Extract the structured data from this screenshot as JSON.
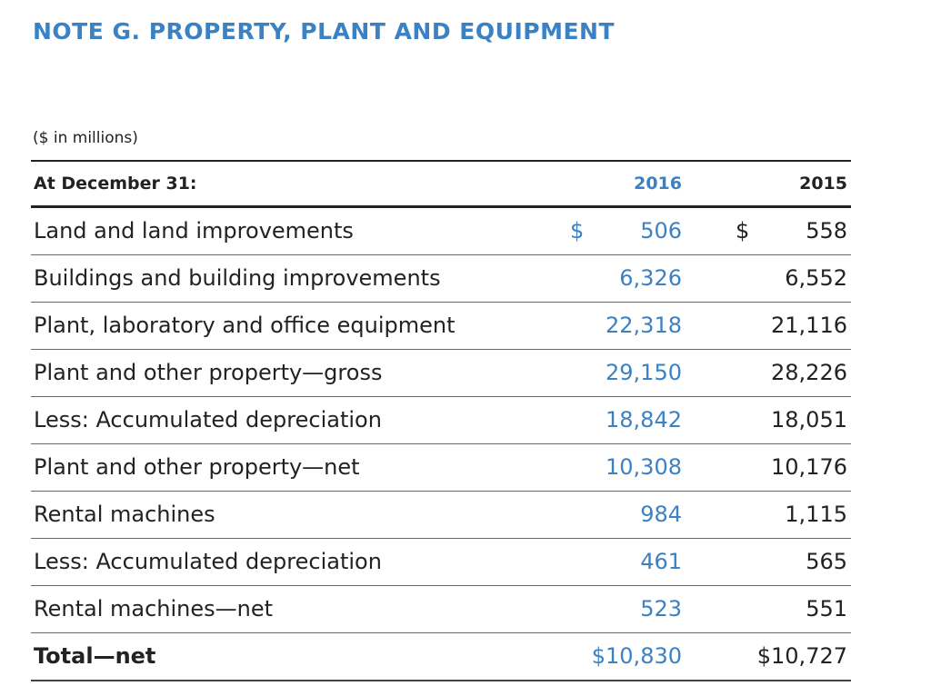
{
  "title": "NOTE G. PROPERTY, PLANT AND EQUIPMENT",
  "units": "($ in millions)",
  "header": {
    "label": "At December 31:",
    "col_2016": "2016",
    "col_2015": "2015"
  },
  "rows": [
    {
      "label": "Land and land improvements",
      "y2016": "506",
      "y2015": "558",
      "dollar": "$"
    },
    {
      "label": "Buildings and building improvements",
      "y2016": "6,326",
      "y2015": "6,552"
    },
    {
      "label": "Plant, laboratory and office equipment",
      "y2016": "22,318",
      "y2015": "21,116"
    },
    {
      "label": "Plant and other property—gross",
      "y2016": "29,150",
      "y2015": "28,226"
    },
    {
      "label": "Less: Accumulated depreciation",
      "y2016": "18,842",
      "y2015": "18,051"
    },
    {
      "label": "Plant and other property—net",
      "y2016": "10,308",
      "y2015": "10,176"
    },
    {
      "label": "Rental machines",
      "y2016": "984",
      "y2015": "1,115"
    },
    {
      "label": "Less: Accumulated depreciation",
      "y2016": "461",
      "y2015": "565"
    },
    {
      "label": "Rental machines—net",
      "y2016": "523",
      "y2015": "551"
    },
    {
      "label": "Total—net",
      "y2016": "$10,830",
      "y2015": "$10,727"
    }
  ],
  "colors": {
    "accent": "#3a82c4",
    "text": "#222222"
  }
}
